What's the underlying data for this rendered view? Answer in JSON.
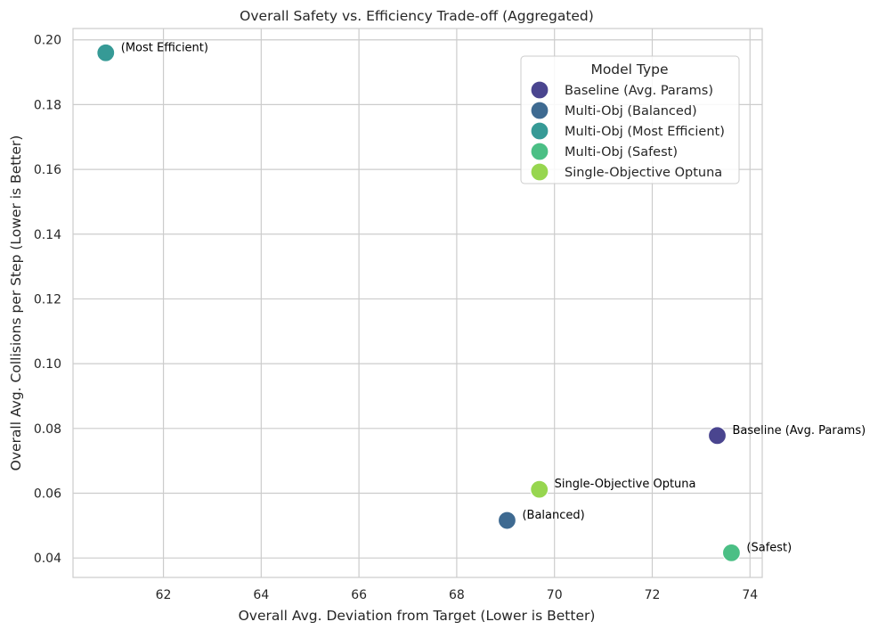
{
  "chart_data": {
    "type": "scatter",
    "title": "Overall Safety vs. Efficiency Trade-off (Aggregated)",
    "xlabel": "Overall Avg. Deviation from Target (Lower is Better)",
    "ylabel": "Overall Avg. Collisions per Step (Lower is Better)",
    "xlim": [
      60.15,
      74.25
    ],
    "ylim": [
      0.034,
      0.2035
    ],
    "xticks": [
      "62",
      "64",
      "66",
      "68",
      "70",
      "72",
      "74"
    ],
    "yticks": [
      "0.04",
      "0.06",
      "0.08",
      "0.10",
      "0.12",
      "0.14",
      "0.16",
      "0.18",
      "0.20"
    ],
    "grid": true,
    "legend": {
      "title": "Model Type",
      "placement": "upper-right"
    },
    "points": [
      {
        "series": "Baseline (Avg. Params)",
        "x": 73.33,
        "y": 0.0778,
        "label": "Baseline (Avg. Params)",
        "color": "#4a458f"
      },
      {
        "series": "Multi-Obj (Balanced)",
        "x": 69.03,
        "y": 0.0516,
        "label": "(Balanced)",
        "color": "#3e6a91"
      },
      {
        "series": "Multi-Obj (Most Efficient)",
        "x": 60.82,
        "y": 0.196,
        "label": "(Most Efficient)",
        "color": "#369a96"
      },
      {
        "series": "Multi-Obj (Safest)",
        "x": 73.62,
        "y": 0.0416,
        "label": "(Safest)",
        "color": "#4bbf85"
      },
      {
        "series": "Single-Objective Optuna",
        "x": 69.69,
        "y": 0.0612,
        "label": "Single-Objective Optuna",
        "color": "#97d64f"
      }
    ]
  }
}
